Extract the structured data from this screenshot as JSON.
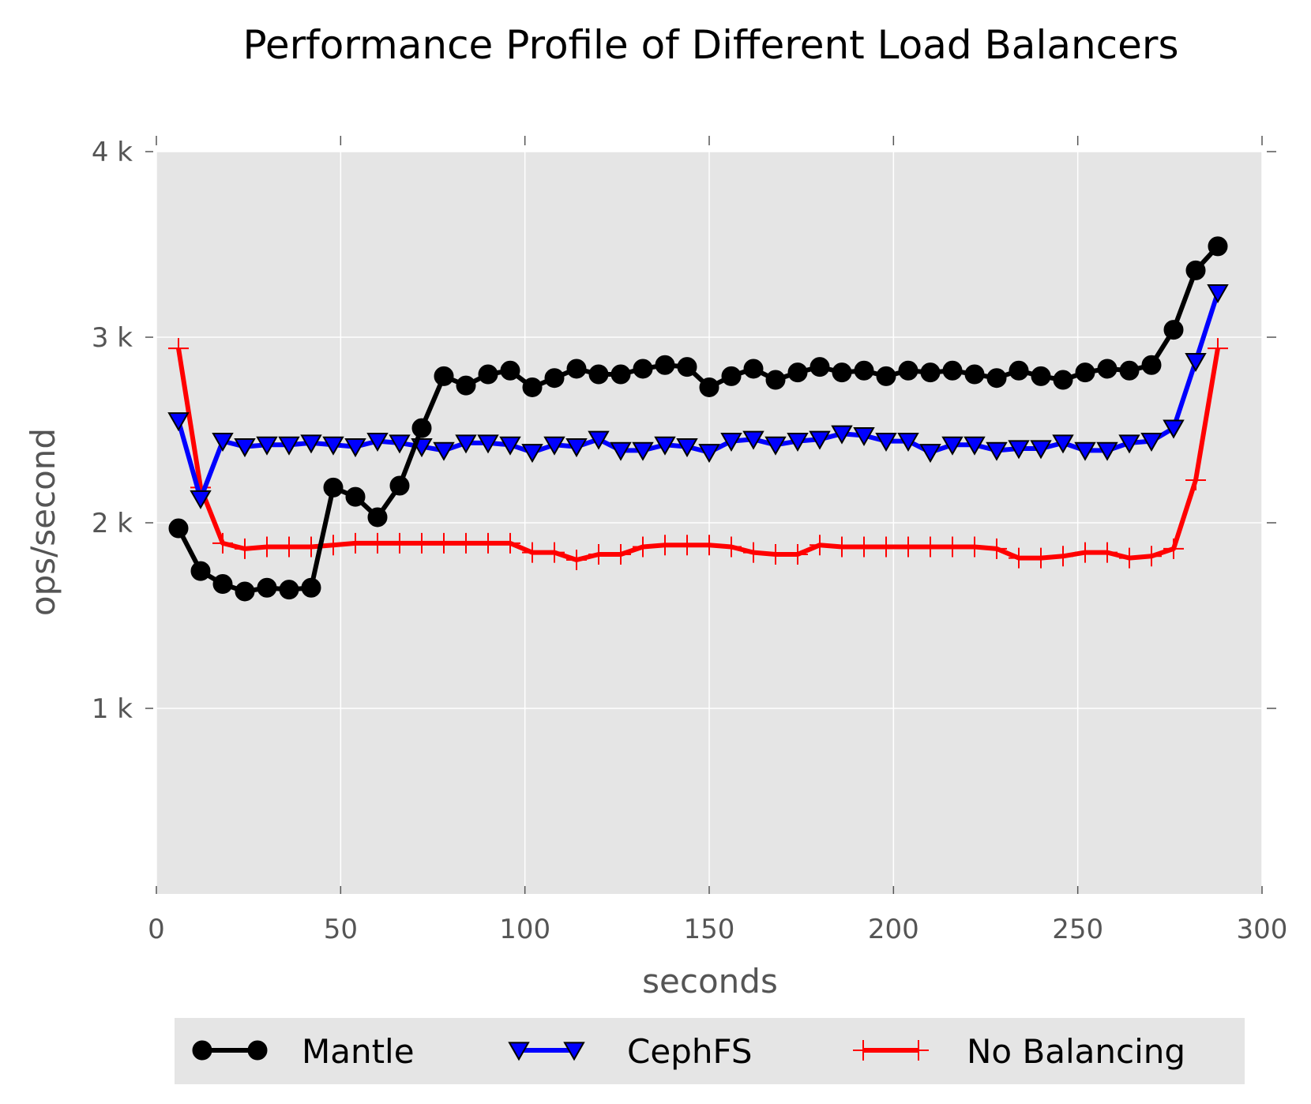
{
  "chart_data": {
    "type": "line",
    "title": "Performance Profile of Different Load Balancers",
    "xlabel": "seconds",
    "ylabel": "ops/second",
    "xlim": [
      0,
      300
    ],
    "ylim": [
      0,
      4000
    ],
    "xticks": [
      0,
      50,
      100,
      150,
      200,
      250,
      300
    ],
    "xtick_labels": [
      "0",
      "50",
      "100",
      "150",
      "200",
      "250",
      "300"
    ],
    "yticks": [
      1000,
      2000,
      3000,
      4000
    ],
    "ytick_labels": [
      "1 k",
      "2 k",
      "3 k",
      "4 k"
    ],
    "grid": true,
    "legend_position": "bottom",
    "background": "#e5e5e5",
    "x": [
      6,
      12,
      18,
      24,
      30,
      36,
      42,
      48,
      54,
      60,
      66,
      72,
      78,
      84,
      90,
      96,
      102,
      108,
      114,
      120,
      126,
      132,
      138,
      144,
      150,
      156,
      162,
      168,
      174,
      180,
      186,
      192,
      198,
      204,
      210,
      216,
      222,
      228,
      234,
      240,
      246,
      252,
      258,
      264,
      270,
      276,
      282,
      288
    ],
    "series": [
      {
        "name": "Mantle",
        "color": "#000000",
        "marker": "circle",
        "values": [
          1970,
          1740,
          1670,
          1630,
          1650,
          1640,
          1650,
          2190,
          2140,
          2030,
          2200,
          2510,
          2790,
          2740,
          2800,
          2820,
          2730,
          2780,
          2830,
          2800,
          2800,
          2830,
          2850,
          2840,
          2730,
          2790,
          2830,
          2770,
          2810,
          2840,
          2810,
          2820,
          2790,
          2820,
          2810,
          2820,
          2800,
          2780,
          2820,
          2790,
          2770,
          2810,
          2830,
          2820,
          2850,
          3040,
          3360,
          3490
        ]
      },
      {
        "name": "CephFS",
        "color": "#0000ff",
        "marker": "triangle-down",
        "values": [
          2550,
          2130,
          2440,
          2410,
          2420,
          2420,
          2430,
          2420,
          2410,
          2440,
          2430,
          2410,
          2390,
          2430,
          2430,
          2420,
          2380,
          2420,
          2410,
          2450,
          2390,
          2390,
          2420,
          2410,
          2380,
          2440,
          2450,
          2420,
          2440,
          2450,
          2480,
          2470,
          2440,
          2440,
          2380,
          2420,
          2420,
          2390,
          2400,
          2400,
          2430,
          2390,
          2390,
          2430,
          2440,
          2510,
          2870,
          3240
        ]
      },
      {
        "name": "No Balancing",
        "color": "#ff0000",
        "marker": "plus",
        "values": [
          2940,
          2190,
          1890,
          1860,
          1870,
          1870,
          1870,
          1880,
          1890,
          1890,
          1890,
          1890,
          1890,
          1890,
          1890,
          1890,
          1840,
          1840,
          1800,
          1830,
          1830,
          1870,
          1880,
          1880,
          1880,
          1870,
          1840,
          1830,
          1830,
          1880,
          1870,
          1870,
          1870,
          1870,
          1870,
          1870,
          1870,
          1860,
          1810,
          1810,
          1820,
          1840,
          1840,
          1810,
          1820,
          1860,
          2230,
          2940
        ]
      }
    ]
  }
}
